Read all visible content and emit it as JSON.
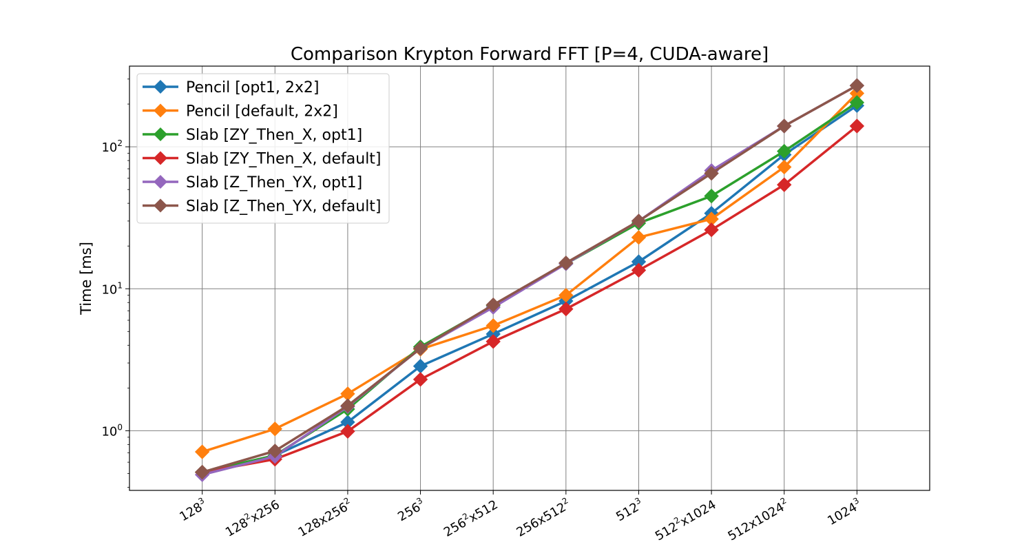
{
  "chart_data": {
    "type": "line",
    "title": "Comparison Krypton Forward FFT [P=4, CUDA-aware]",
    "xlabel": "",
    "ylabel": "Time [ms]",
    "yscale": "log",
    "ylim": [
      0.38,
      370
    ],
    "grid": true,
    "legend_position": "top-left",
    "categories": [
      {
        "base": "128",
        "sup": "3",
        "rest": "",
        "sup2": ""
      },
      {
        "base": "128",
        "sup": "2",
        "rest": "x256",
        "sup2": ""
      },
      {
        "base": "128x256",
        "sup": "2",
        "rest": "",
        "sup2": ""
      },
      {
        "base": "256",
        "sup": "3",
        "rest": "",
        "sup2": ""
      },
      {
        "base": "256",
        "sup": "2",
        "rest": "x512",
        "sup2": ""
      },
      {
        "base": "256x512",
        "sup": "2",
        "rest": "",
        "sup2": ""
      },
      {
        "base": "512",
        "sup": "3",
        "rest": "",
        "sup2": ""
      },
      {
        "base": "512",
        "sup": "2",
        "rest": "x1024",
        "sup2": ""
      },
      {
        "base": "512x1024",
        "sup": "2",
        "rest": "",
        "sup2": ""
      },
      {
        "base": "1024",
        "sup": "3",
        "rest": "",
        "sup2": ""
      }
    ],
    "y_ticks": [
      {
        "value": 1,
        "base": "10",
        "exp": "0"
      },
      {
        "value": 10,
        "base": "10",
        "exp": "1"
      },
      {
        "value": 100,
        "base": "10",
        "exp": "2"
      }
    ],
    "series": [
      {
        "name": "Pencil [opt1, 2x2]",
        "color": "#1f77b4",
        "values": [
          0.51,
          0.67,
          1.15,
          2.85,
          4.8,
          8.2,
          15.5,
          34,
          88,
          195
        ]
      },
      {
        "name": "Pencil [default, 2x2]",
        "color": "#ff7f0e",
        "values": [
          0.71,
          1.03,
          1.82,
          3.75,
          5.5,
          9.0,
          23,
          31,
          72,
          238
        ]
      },
      {
        "name": "Slab [ZY_Then_X, opt1]",
        "color": "#2ca02c",
        "values": [
          0.51,
          0.67,
          1.42,
          3.9,
          7.6,
          15,
          29,
          45,
          93,
          205
        ]
      },
      {
        "name": "Slab [ZY_Then_X, default]",
        "color": "#d62728",
        "values": [
          0.51,
          0.63,
          0.99,
          2.3,
          4.25,
          7.2,
          13.5,
          26,
          54,
          140
        ]
      },
      {
        "name": "Slab [Z_Then_YX, opt1]",
        "color": "#9467bd",
        "values": [
          0.49,
          0.66,
          1.48,
          3.8,
          7.4,
          15,
          30,
          68,
          140,
          270
        ]
      },
      {
        "name": "Slab [Z_Then_YX, default]",
        "color": "#8c564b",
        "values": [
          0.51,
          0.72,
          1.5,
          3.8,
          7.7,
          15.2,
          30,
          65,
          140,
          270
        ]
      }
    ]
  }
}
